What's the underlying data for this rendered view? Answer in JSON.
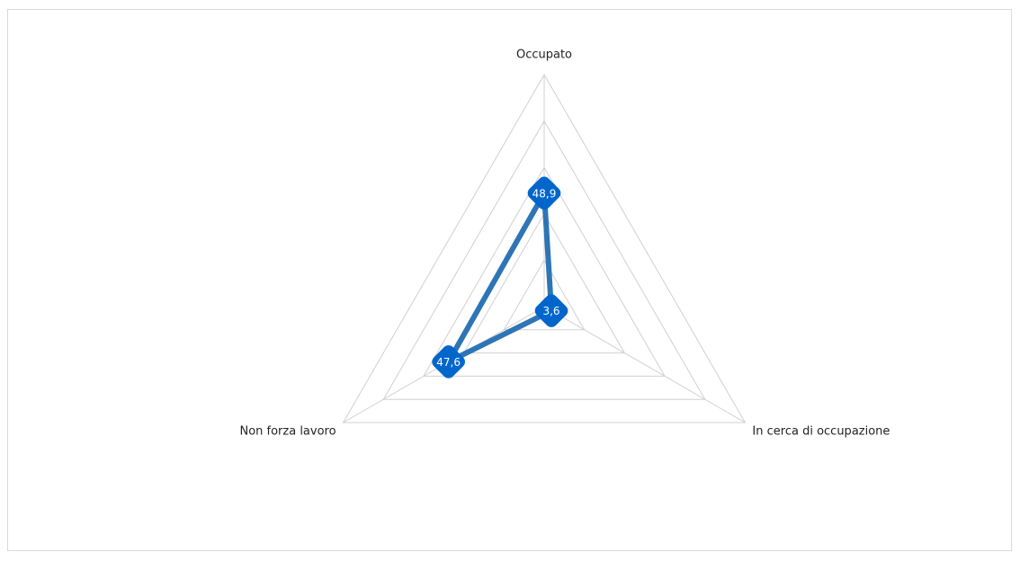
{
  "chart_data": {
    "type": "radar",
    "categories": [
      "Occupato",
      "In cerca di occupazione",
      "Non forza lavoro"
    ],
    "values": [
      48.9,
      3.6,
      47.6
    ],
    "value_labels": [
      "48,9",
      "3,6",
      "47,6"
    ],
    "color": "#2e75b6",
    "marker_color": "#0066cc",
    "ylim": [
      0,
      100
    ],
    "yticks": [
      0,
      20,
      40,
      60,
      80,
      100
    ],
    "grid": true
  }
}
